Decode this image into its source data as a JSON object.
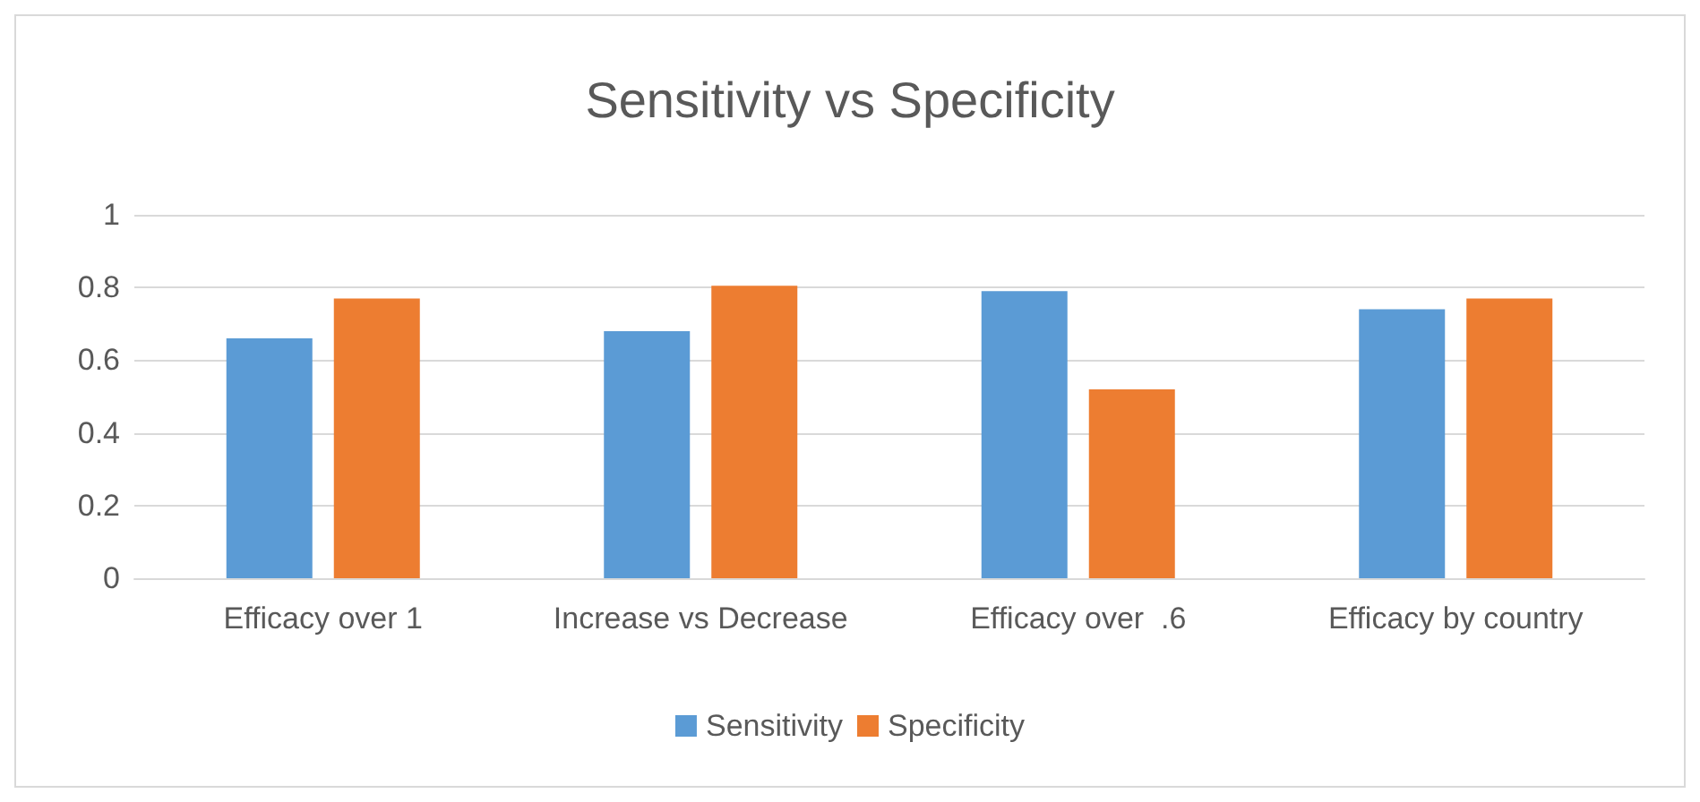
{
  "chart_data": {
    "type": "bar",
    "title": "Sensitivity vs Specificity",
    "categories": [
      "Efficacy over 1",
      "Increase vs Decrease",
      "Efficacy over  .6",
      "Efficacy by country"
    ],
    "series": [
      {
        "name": "Sensitivity",
        "color": "#5b9bd5",
        "values": [
          0.66,
          0.68,
          0.79,
          0.74
        ]
      },
      {
        "name": "Specificity",
        "color": "#ed7d31",
        "values": [
          0.77,
          0.805,
          0.52,
          0.77
        ]
      }
    ],
    "ylim": [
      0,
      1
    ],
    "yticks": [
      0,
      0.2,
      0.4,
      0.6,
      0.8,
      1
    ],
    "grid": "y",
    "legend": "bottom"
  }
}
